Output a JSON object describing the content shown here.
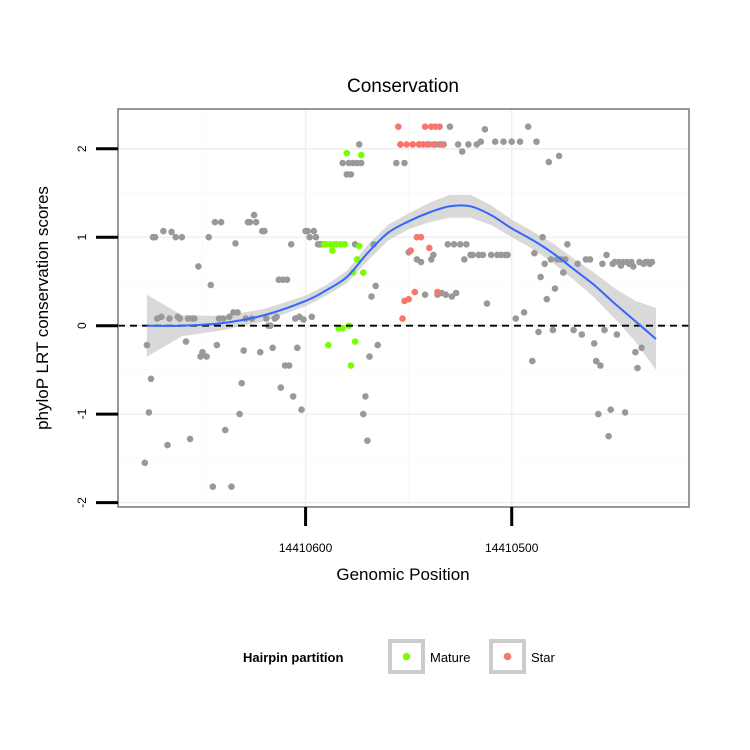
{
  "chart_data": {
    "type": "scatter",
    "title": "Conservation",
    "xlabel": "Genomic Position",
    "ylabel": "phyloP LRT conservation scores",
    "x_reversed": true,
    "xlim": [
      14410691,
      14410414
    ],
    "ylim": [
      -2.05,
      2.45
    ],
    "x_ticks": [
      {
        "value": 14410600,
        "label": "14410600"
      },
      {
        "value": 14410500,
        "label": "14410500"
      }
    ],
    "y_ticks": [
      {
        "value": -2,
        "label": "-2"
      },
      {
        "value": -1,
        "label": "-1"
      },
      {
        "value": 0,
        "label": "0"
      },
      {
        "value": 1,
        "label": "1"
      },
      {
        "value": 2,
        "label": "2"
      }
    ],
    "reference_line": {
      "y": 0,
      "style": "dashed"
    },
    "grid": true,
    "legend": {
      "title": "Hairpin partition",
      "position": "bottom",
      "items": [
        {
          "label": "Mature",
          "color": "#7cfc00"
        },
        {
          "label": "Star",
          "color": "#f8766d"
        }
      ]
    },
    "colors": {
      "other": "#999999",
      "mature": "#7cfc00",
      "star": "#f8766d",
      "smooth": "#3366ff",
      "ribbon": "#cccccc"
    },
    "smooth": {
      "x": [
        14410677,
        14410660,
        14410640,
        14410620,
        14410600,
        14410590,
        14410580,
        14410570,
        14410560,
        14410550,
        14410540,
        14410530,
        14410520,
        14410510,
        14410500,
        14410490,
        14410480,
        14410470,
        14410460,
        14410450,
        14410440,
        14410430
      ],
      "y": [
        0.0,
        0.0,
        0.03,
        0.12,
        0.28,
        0.4,
        0.55,
        0.82,
        1.05,
        1.18,
        1.28,
        1.35,
        1.35,
        1.25,
        1.1,
        0.97,
        0.82,
        0.64,
        0.46,
        0.25,
        0.05,
        -0.15
      ],
      "lower": [
        -0.35,
        -0.12,
        -0.05,
        0.05,
        0.22,
        0.34,
        0.48,
        0.73,
        0.96,
        1.09,
        1.17,
        1.22,
        1.22,
        1.14,
        1.0,
        0.87,
        0.71,
        0.52,
        0.32,
        0.08,
        -0.18,
        -0.5
      ],
      "upper": [
        0.35,
        0.12,
        0.11,
        0.19,
        0.34,
        0.46,
        0.62,
        0.91,
        1.14,
        1.27,
        1.39,
        1.48,
        1.48,
        1.36,
        1.2,
        1.07,
        0.93,
        0.76,
        0.6,
        0.42,
        0.28,
        0.2
      ]
    },
    "series": [
      {
        "group": "other",
        "points": [
          [
            14410678,
            -1.55
          ],
          [
            14410677,
            -0.22
          ],
          [
            14410676,
            -0.98
          ],
          [
            14410675,
            -0.6
          ],
          [
            14410674,
            1.0
          ],
          [
            14410673,
            1.0
          ],
          [
            14410672,
            0.08
          ],
          [
            14410670,
            0.1
          ],
          [
            14410669,
            1.07
          ],
          [
            14410667,
            -1.35
          ],
          [
            14410666,
            0.08
          ],
          [
            14410665,
            1.06
          ],
          [
            14410663,
            1.0
          ],
          [
            14410662,
            0.1
          ],
          [
            14410661,
            0.08
          ],
          [
            14410660,
            1.0
          ],
          [
            14410658,
            -0.18
          ],
          [
            14410657,
            0.08
          ],
          [
            14410656,
            -1.28
          ],
          [
            14410655,
            0.08
          ],
          [
            14410654,
            0.08
          ],
          [
            14410652,
            0.67
          ],
          [
            14410651,
            -0.35
          ],
          [
            14410650,
            -0.3
          ],
          [
            14410648,
            -0.35
          ],
          [
            14410647,
            1.0
          ],
          [
            14410646,
            0.46
          ],
          [
            14410645,
            -1.82
          ],
          [
            14410644,
            1.17
          ],
          [
            14410643,
            -0.22
          ],
          [
            14410642,
            0.08
          ],
          [
            14410641,
            1.17
          ],
          [
            14410640,
            0.08
          ],
          [
            14410639,
            -1.18
          ],
          [
            14410637,
            0.1
          ],
          [
            14410636,
            -1.82
          ],
          [
            14410635,
            0.15
          ],
          [
            14410634,
            0.93
          ],
          [
            14410633,
            0.15
          ],
          [
            14410632,
            -1.0
          ],
          [
            14410631,
            -0.65
          ],
          [
            14410630,
            -0.28
          ],
          [
            14410629,
            0.08
          ],
          [
            14410628,
            1.17
          ],
          [
            14410627,
            1.17
          ],
          [
            14410626,
            0.08
          ],
          [
            14410625,
            1.25
          ],
          [
            14410624,
            1.17
          ],
          [
            14410622,
            -0.3
          ],
          [
            14410621,
            1.07
          ],
          [
            14410620,
            1.07
          ],
          [
            14410619,
            0.08
          ],
          [
            14410618,
            0.0
          ],
          [
            14410617,
            0.0
          ],
          [
            14410616,
            -0.25
          ],
          [
            14410615,
            0.08
          ],
          [
            14410614,
            0.1
          ],
          [
            14410613,
            0.52
          ],
          [
            14410612,
            -0.7
          ],
          [
            14410611,
            0.52
          ],
          [
            14410610,
            -0.45
          ],
          [
            14410609,
            0.52
          ],
          [
            14410608,
            -0.45
          ],
          [
            14410607,
            0.92
          ],
          [
            14410606,
            -0.8
          ],
          [
            14410605,
            0.08
          ],
          [
            14410604,
            -0.25
          ],
          [
            14410603,
            0.1
          ],
          [
            14410602,
            -0.95
          ],
          [
            14410601,
            0.07
          ],
          [
            14410600,
            1.07
          ],
          [
            14410599,
            1.07
          ],
          [
            14410598,
            1.0
          ],
          [
            14410597,
            0.1
          ],
          [
            14410596,
            1.07
          ],
          [
            14410595,
            1.0
          ],
          [
            14410594,
            0.92
          ],
          [
            14410593,
            0.92
          ],
          [
            14410592,
            0.92
          ],
          [
            14410582,
            1.84
          ],
          [
            14410580,
            1.71
          ],
          [
            14410579,
            1.84
          ],
          [
            14410578,
            1.71
          ],
          [
            14410577,
            1.84
          ],
          [
            14410576,
            0.92
          ],
          [
            14410575,
            1.84
          ],
          [
            14410574,
            2.05
          ],
          [
            14410573,
            1.84
          ],
          [
            14410572,
            -1.0
          ],
          [
            14410571,
            -0.8
          ],
          [
            14410570,
            -1.3
          ],
          [
            14410569,
            -0.35
          ],
          [
            14410568,
            0.33
          ],
          [
            14410567,
            0.92
          ],
          [
            14410566,
            0.45
          ],
          [
            14410565,
            -0.22
          ],
          [
            14410556,
            1.84
          ],
          [
            14410554,
            2.05
          ],
          [
            14410552,
            1.84
          ],
          [
            14410550,
            0.83
          ],
          [
            14410548,
            2.05
          ],
          [
            14410546,
            0.75
          ],
          [
            14410545,
            2.05
          ],
          [
            14410544,
            0.72
          ],
          [
            14410543,
            2.05
          ],
          [
            14410542,
            0.35
          ],
          [
            14410540,
            2.05
          ],
          [
            14410539,
            0.75
          ],
          [
            14410538,
            0.8
          ],
          [
            14410537,
            2.05
          ],
          [
            14410536,
            0.35
          ],
          [
            14410535,
            2.05
          ],
          [
            14410534,
            0.37
          ],
          [
            14410533,
            2.05
          ],
          [
            14410532,
            0.35
          ],
          [
            14410531,
            0.92
          ],
          [
            14410530,
            2.25
          ],
          [
            14410529,
            0.33
          ],
          [
            14410528,
            0.92
          ],
          [
            14410527,
            0.37
          ],
          [
            14410526,
            2.05
          ],
          [
            14410525,
            0.92
          ],
          [
            14410524,
            1.97
          ],
          [
            14410523,
            0.75
          ],
          [
            14410522,
            0.92
          ],
          [
            14410521,
            2.05
          ],
          [
            14410520,
            0.8
          ],
          [
            14410519,
            0.8
          ],
          [
            14410517,
            2.05
          ],
          [
            14410516,
            0.8
          ],
          [
            14410515,
            2.08
          ],
          [
            14410514,
            0.8
          ],
          [
            14410513,
            2.22
          ],
          [
            14410512,
            0.25
          ],
          [
            14410510,
            0.8
          ],
          [
            14410508,
            2.08
          ],
          [
            14410507,
            0.8
          ],
          [
            14410505,
            0.8
          ],
          [
            14410504,
            2.08
          ],
          [
            14410503,
            0.8
          ],
          [
            14410502,
            0.8
          ],
          [
            14410500,
            2.08
          ],
          [
            14410498,
            0.08
          ],
          [
            14410496,
            2.08
          ],
          [
            14410494,
            0.15
          ],
          [
            14410492,
            2.25
          ],
          [
            14410490,
            -0.4
          ],
          [
            14410489,
            0.82
          ],
          [
            14410488,
            2.08
          ],
          [
            14410487,
            -0.07
          ],
          [
            14410486,
            0.55
          ],
          [
            14410485,
            1.0
          ],
          [
            14410484,
            0.7
          ],
          [
            14410483,
            0.3
          ],
          [
            14410482,
            1.85
          ],
          [
            14410481,
            0.75
          ],
          [
            14410480,
            -0.05
          ],
          [
            14410479,
            0.42
          ],
          [
            14410478,
            0.75
          ],
          [
            14410477,
            1.92
          ],
          [
            14410476,
            0.75
          ],
          [
            14410475,
            0.6
          ],
          [
            14410474,
            0.75
          ],
          [
            14410473,
            0.92
          ],
          [
            14410470,
            -0.05
          ],
          [
            14410468,
            0.7
          ],
          [
            14410466,
            -0.1
          ],
          [
            14410464,
            0.75
          ],
          [
            14410462,
            0.75
          ],
          [
            14410460,
            -0.2
          ],
          [
            14410459,
            -0.4
          ],
          [
            14410458,
            -1.0
          ],
          [
            14410457,
            -0.45
          ],
          [
            14410456,
            0.7
          ],
          [
            14410455,
            -0.05
          ],
          [
            14410454,
            0.8
          ],
          [
            14410453,
            -1.25
          ],
          [
            14410452,
            -0.95
          ],
          [
            14410451,
            0.7
          ],
          [
            14410450,
            0.72
          ],
          [
            14410449,
            -0.1
          ],
          [
            14410448,
            0.72
          ],
          [
            14410447,
            0.68
          ],
          [
            14410446,
            0.72
          ],
          [
            14410445,
            -0.98
          ],
          [
            14410444,
            0.72
          ],
          [
            14410443,
            0.7
          ],
          [
            14410442,
            0.72
          ],
          [
            14410441,
            0.67
          ],
          [
            14410440,
            -0.3
          ],
          [
            14410439,
            -0.48
          ],
          [
            14410438,
            0.72
          ],
          [
            14410437,
            -0.25
          ],
          [
            14410436,
            0.7
          ],
          [
            14410435,
            0.72
          ],
          [
            14410434,
            0.72
          ],
          [
            14410433,
            0.7
          ],
          [
            14410432,
            0.72
          ]
        ]
      },
      {
        "group": "mature",
        "name": "Mature",
        "points": [
          [
            14410591,
            0.92
          ],
          [
            14410590,
            0.92
          ],
          [
            14410589,
            -0.22
          ],
          [
            14410588,
            0.92
          ],
          [
            14410587,
            0.85
          ],
          [
            14410586,
            0.92
          ],
          [
            14410585,
            0.92
          ],
          [
            14410584,
            -0.03
          ],
          [
            14410583,
            0.92
          ],
          [
            14410582,
            -0.03
          ],
          [
            14410581,
            0.92
          ],
          [
            14410580,
            1.95
          ],
          [
            14410579,
            0.0
          ],
          [
            14410578,
            -0.45
          ],
          [
            14410577,
            0.6
          ],
          [
            14410576,
            -0.18
          ],
          [
            14410575,
            0.75
          ],
          [
            14410574,
            0.9
          ],
          [
            14410573,
            1.93
          ],
          [
            14410572,
            0.6
          ]
        ]
      },
      {
        "group": "star",
        "name": "Star",
        "points": [
          [
            14410555,
            2.25
          ],
          [
            14410554,
            2.05
          ],
          [
            14410553,
            0.08
          ],
          [
            14410552,
            0.28
          ],
          [
            14410551,
            2.05
          ],
          [
            14410550,
            0.3
          ],
          [
            14410549,
            0.85
          ],
          [
            14410548,
            2.05
          ],
          [
            14410547,
            0.38
          ],
          [
            14410546,
            1.0
          ],
          [
            14410545,
            2.05
          ],
          [
            14410544,
            1.0
          ],
          [
            14410543,
            2.05
          ],
          [
            14410542,
            2.25
          ],
          [
            14410541,
            2.05
          ],
          [
            14410540,
            0.88
          ],
          [
            14410539,
            2.25
          ],
          [
            14410538,
            2.05
          ],
          [
            14410537,
            2.25
          ],
          [
            14410536,
            0.38
          ],
          [
            14410535,
            2.25
          ],
          [
            14410534,
            2.05
          ]
        ]
      }
    ]
  }
}
